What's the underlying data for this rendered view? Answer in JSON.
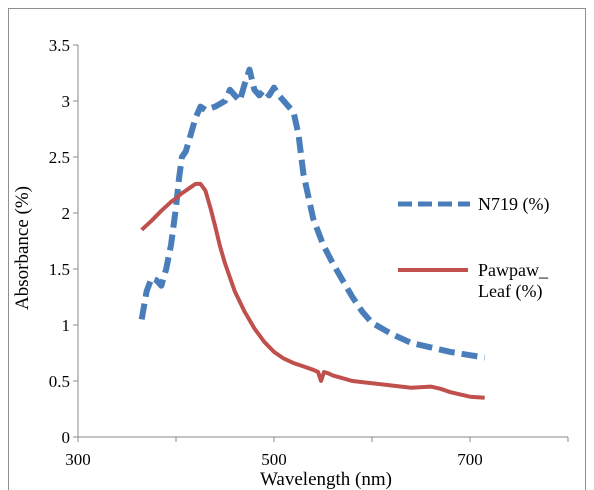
{
  "chart_data": {
    "type": "line",
    "title": "",
    "xlabel": "Wavelength (nm)",
    "ylabel": "Absorbance (%)",
    "xlim": [
      300,
      800
    ],
    "ylim": [
      0,
      3.5
    ],
    "x_ticks": [
      300,
      500,
      700
    ],
    "y_ticks": [
      "0",
      "0.5",
      "1",
      "1.5",
      "2",
      "2.5",
      "3",
      "3.5"
    ],
    "grid": false,
    "legend_position": "right",
    "series": [
      {
        "name": "N719 (%)",
        "color": "#4a7ebb",
        "style": "dashed",
        "x": [
          365,
          370,
          375,
          380,
          385,
          390,
          395,
          400,
          403,
          406,
          410,
          415,
          420,
          425,
          430,
          440,
          450,
          455,
          460,
          465,
          470,
          475,
          480,
          485,
          490,
          495,
          500,
          505,
          510,
          515,
          520,
          525,
          530,
          540,
          550,
          560,
          570,
          580,
          590,
          600,
          620,
          640,
          660,
          680,
          700,
          715
        ],
        "y": [
          1.05,
          1.3,
          1.42,
          1.4,
          1.35,
          1.5,
          1.72,
          2.05,
          2.3,
          2.5,
          2.55,
          2.7,
          2.85,
          2.95,
          2.92,
          2.95,
          3.0,
          3.1,
          3.05,
          3.0,
          3.15,
          3.28,
          3.1,
          3.05,
          3.1,
          3.05,
          3.12,
          3.05,
          3.0,
          2.95,
          2.9,
          2.7,
          2.35,
          1.95,
          1.72,
          1.55,
          1.4,
          1.25,
          1.12,
          1.02,
          0.92,
          0.84,
          0.8,
          0.76,
          0.73,
          0.71
        ]
      },
      {
        "name": "Pawpaw_ Leaf (%)",
        "color": "#c0504d",
        "style": "solid",
        "x": [
          365,
          375,
          385,
          395,
          400,
          405,
          410,
          415,
          420,
          425,
          430,
          435,
          440,
          445,
          450,
          460,
          470,
          480,
          490,
          500,
          510,
          520,
          530,
          540,
          545,
          548,
          551,
          555,
          560,
          580,
          600,
          620,
          640,
          660,
          670,
          680,
          690,
          700,
          715
        ],
        "y": [
          1.85,
          1.93,
          2.02,
          2.1,
          2.13,
          2.17,
          2.2,
          2.23,
          2.26,
          2.26,
          2.2,
          2.05,
          1.88,
          1.7,
          1.55,
          1.3,
          1.12,
          0.97,
          0.85,
          0.76,
          0.7,
          0.66,
          0.63,
          0.6,
          0.58,
          0.5,
          0.58,
          0.57,
          0.55,
          0.5,
          0.48,
          0.46,
          0.44,
          0.45,
          0.43,
          0.4,
          0.38,
          0.36,
          0.35
        ]
      }
    ]
  }
}
